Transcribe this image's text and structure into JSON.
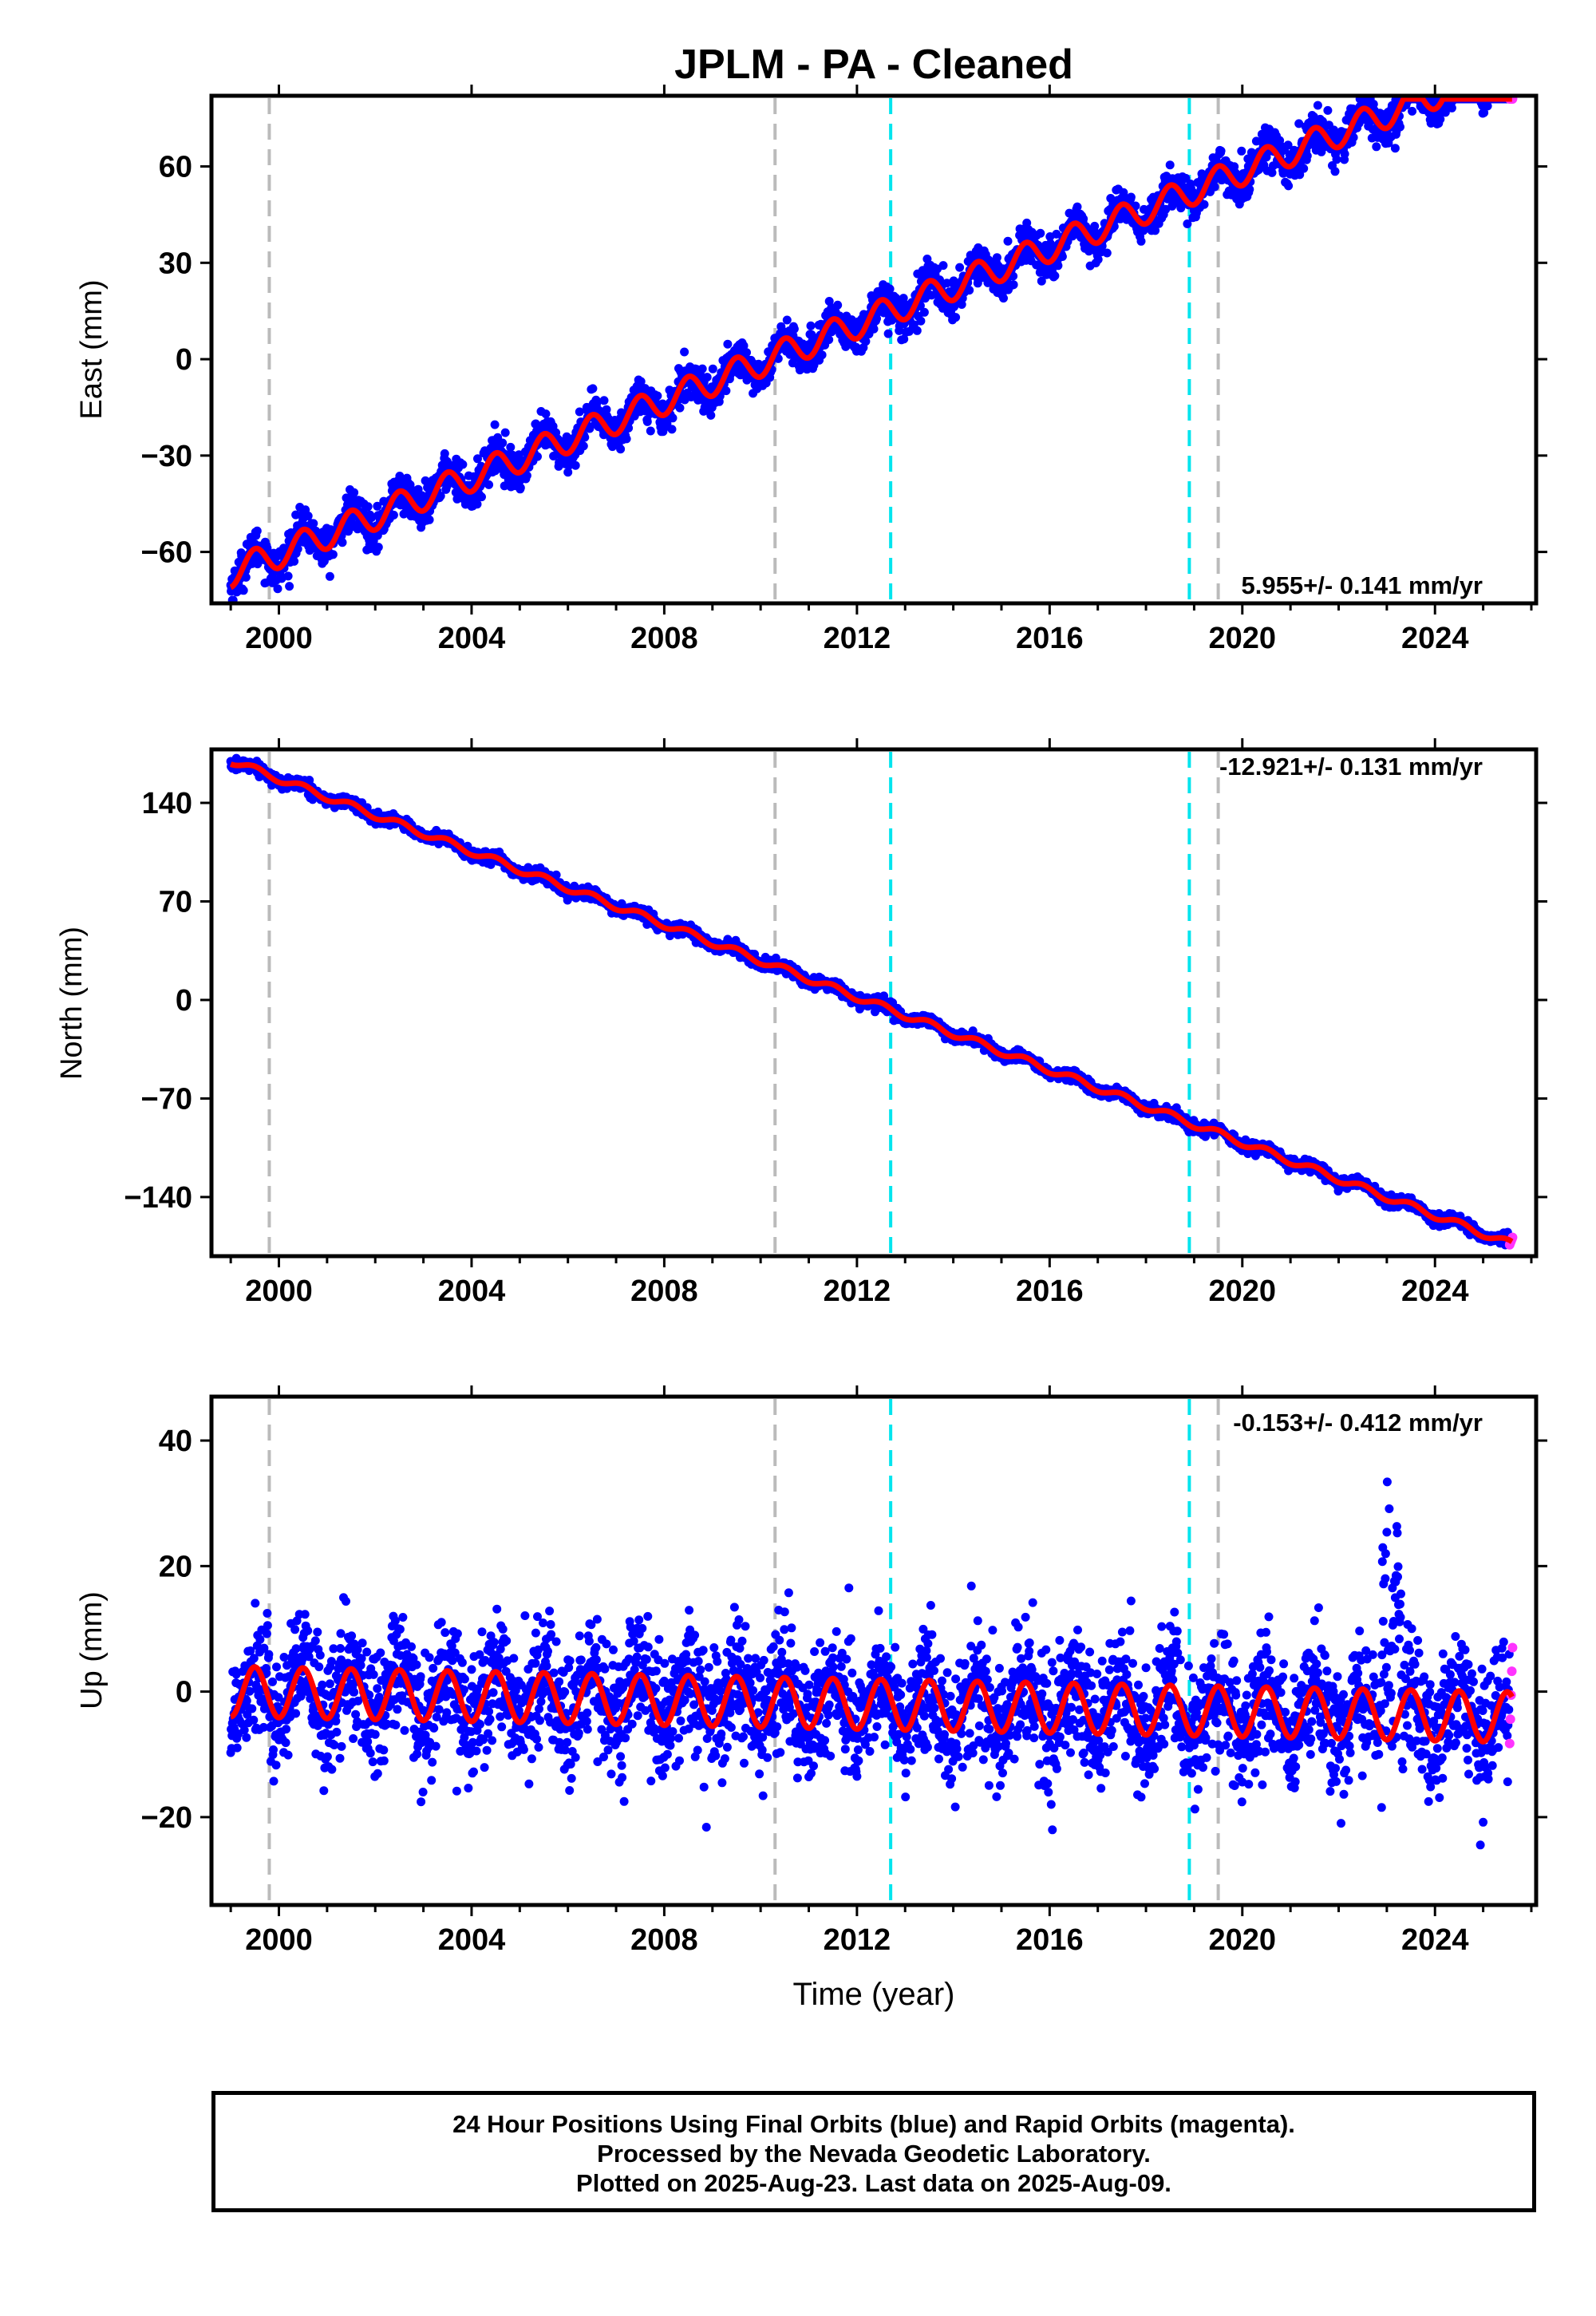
{
  "title": "JPLM  - PA - Cleaned",
  "footer": {
    "line1": "24 Hour Positions Using Final Orbits (blue) and Rapid Orbits (magenta).",
    "line2": "Processed by the Nevada Geodetic Laboratory.",
    "line3": "Plotted on 2025-Aug-23. Last data on 2025-Aug-09."
  },
  "colors": {
    "final_orbits": "#0000ff",
    "rapid_orbits": "#ff33ff",
    "model": "#ff0000",
    "equipment_change": "#bbbbbb",
    "earthquake": "#00e5ee"
  },
  "chart_data": [
    {
      "type": "scatter",
      "ylabel": "East (mm)",
      "xlabel": "",
      "xlim": [
        1998.6,
        2026.1
      ],
      "ylim": [
        -76,
        82
      ],
      "yticks": [
        -60,
        -30,
        0,
        30,
        60
      ],
      "xticks": [
        2000,
        2004,
        2008,
        2012,
        2016,
        2020,
        2024
      ],
      "rate_label": "5.955+/- 0.141 mm/yr",
      "rate_position": "bottom-right",
      "grid": false,
      "trend": {
        "t0": 1999.0,
        "v0": -66.5,
        "rate": 5.955,
        "annual_amplitude": 4.5,
        "scatter": 3
      },
      "equipment_changes": [
        1999.8,
        2010.3,
        2019.5
      ],
      "earthquakes": [
        2012.7,
        2018.9
      ],
      "series": [
        {
          "name": "Final Orbits",
          "x_start": 1999.0,
          "x_end": 2025.55
        },
        {
          "name": "Rapid Orbits",
          "x_start": 2025.55,
          "x_end": 2025.61
        }
      ]
    },
    {
      "type": "scatter",
      "ylabel": "North (mm)",
      "xlabel": "",
      "xlim": [
        1998.6,
        2026.1
      ],
      "ylim": [
        -182,
        178
      ],
      "yticks": [
        -140,
        -70,
        0,
        70,
        140
      ],
      "xticks": [
        2000,
        2004,
        2008,
        2012,
        2016,
        2020,
        2024
      ],
      "rate_label": "-12.921+/- 0.131 mm/yr",
      "rate_position": "top-right",
      "grid": false,
      "trend": {
        "t0": 1999.0,
        "v0": 170,
        "rate": -12.921,
        "annual_amplitude": 2.5,
        "scatter": 2
      },
      "equipment_changes": [
        1999.8,
        2010.3,
        2019.5
      ],
      "earthquakes": [
        2012.7,
        2018.9
      ],
      "series": [
        {
          "name": "Final Orbits",
          "x_start": 1999.0,
          "x_end": 2025.55
        },
        {
          "name": "Rapid Orbits",
          "x_start": 2025.55,
          "x_end": 2025.61
        }
      ]
    },
    {
      "type": "scatter",
      "ylabel": "Up (mm)",
      "xlabel": "Time (year)",
      "xlim": [
        1998.6,
        2026.1
      ],
      "ylim": [
        -34,
        47
      ],
      "yticks": [
        -20,
        0,
        20,
        40
      ],
      "xticks": [
        2000,
        2004,
        2008,
        2012,
        2016,
        2020,
        2024
      ],
      "rate_label": "-0.153+/- 0.412 mm/yr",
      "rate_position": "top-right",
      "grid": false,
      "trend": {
        "t0": 1999.0,
        "v0": 0,
        "rate": -0.153,
        "annual_amplitude": 4,
        "scatter": 5
      },
      "equipment_changes": [
        1999.8,
        2010.3,
        2019.5
      ],
      "earthquakes": [
        2012.7,
        2018.9
      ],
      "series": [
        {
          "name": "Final Orbits",
          "x_start": 1999.0,
          "x_end": 2025.55
        },
        {
          "name": "Rapid Orbits",
          "x_start": 2025.55,
          "x_end": 2025.61
        }
      ]
    }
  ]
}
